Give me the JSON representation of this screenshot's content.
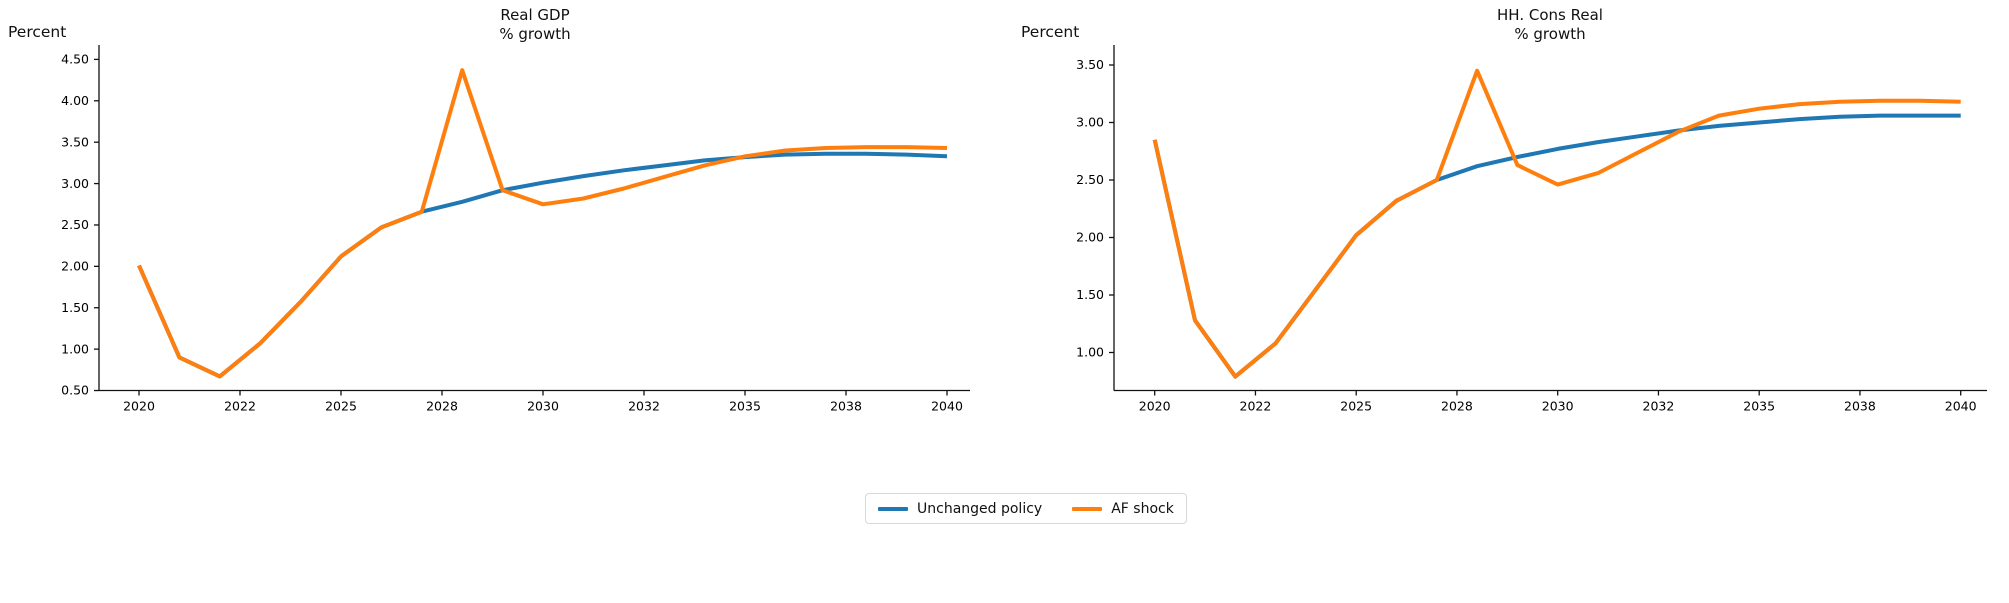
{
  "legend": {
    "items": [
      {
        "label": "Unchanged policy",
        "color": "#1f77b4",
        "swatch": "blue-line-swatch"
      },
      {
        "label": "AF shock",
        "color": "#ff7f0e",
        "swatch": "orange-line-swatch"
      }
    ],
    "position": "bottom-center"
  },
  "chart_data": [
    {
      "type": "line",
      "title": "Real GDP",
      "subtitle": "% growth",
      "ylabel": "Percent",
      "xlabel": "",
      "grid": false,
      "x": [
        2020,
        2021,
        2022,
        2023,
        2024,
        2025,
        2026,
        2027,
        2028,
        2029,
        2030,
        2031,
        2032,
        2033,
        2034,
        2035,
        2036,
        2037,
        2038,
        2039,
        2040
      ],
      "series": [
        {
          "name": "Unchanged policy",
          "color": "#1f77b4",
          "values": [
            2.01,
            0.9,
            0.67,
            1.07,
            1.57,
            2.12,
            2.47,
            2.66,
            2.78,
            2.92,
            3.01,
            3.09,
            3.16,
            3.22,
            3.28,
            3.32,
            3.35,
            3.36,
            3.36,
            3.35,
            3.33
          ]
        },
        {
          "name": "AF shock",
          "color": "#ff7f0e",
          "values": [
            2.01,
            0.9,
            0.67,
            1.07,
            1.57,
            2.12,
            2.47,
            2.66,
            4.37,
            2.92,
            2.75,
            2.82,
            2.94,
            3.08,
            3.22,
            3.33,
            3.4,
            3.43,
            3.44,
            3.44,
            3.43
          ]
        }
      ],
      "x_ticks": [
        {
          "label": "2020",
          "pos": 2020
        },
        {
          "label": "2022",
          "pos": 2022.5
        },
        {
          "label": "2025",
          "pos": 2025
        },
        {
          "label": "2028",
          "pos": 2027.5
        },
        {
          "label": "2030",
          "pos": 2030
        },
        {
          "label": "2032",
          "pos": 2032.5
        },
        {
          "label": "2035",
          "pos": 2035
        },
        {
          "label": "2038",
          "pos": 2037.5
        },
        {
          "label": "2040",
          "pos": 2040
        }
      ],
      "y_ticks": [
        "4.50",
        "4.00",
        "3.50",
        "3.00",
        "2.50",
        "2.00",
        "1.50",
        "1.00",
        "0.50"
      ],
      "y_tick_range": [
        0.5,
        4.5
      ],
      "x_range": [
        2020,
        2040
      ]
    },
    {
      "type": "line",
      "title": "HH. Cons Real",
      "subtitle": "% growth",
      "ylabel": "Percent",
      "xlabel": "",
      "grid": false,
      "x": [
        2020,
        2021,
        2022,
        2023,
        2024,
        2025,
        2026,
        2027,
        2028,
        2029,
        2030,
        2031,
        2032,
        2033,
        2034,
        2035,
        2036,
        2037,
        2038,
        2039,
        2040
      ],
      "series": [
        {
          "name": "Unchanged policy",
          "color": "#1f77b4",
          "values": [
            2.85,
            1.28,
            0.79,
            1.08,
            1.55,
            2.02,
            2.32,
            2.5,
            2.62,
            2.7,
            2.77,
            2.83,
            2.88,
            2.93,
            2.97,
            3.0,
            3.03,
            3.05,
            3.06,
            3.06,
            3.06
          ]
        },
        {
          "name": "AF shock",
          "color": "#ff7f0e",
          "values": [
            2.85,
            1.28,
            0.79,
            1.08,
            1.55,
            2.02,
            2.32,
            2.5,
            3.45,
            2.63,
            2.46,
            2.56,
            2.74,
            2.92,
            3.06,
            3.12,
            3.16,
            3.18,
            3.19,
            3.19,
            3.18
          ]
        }
      ],
      "x_ticks": [
        {
          "label": "2020",
          "pos": 2020
        },
        {
          "label": "2022",
          "pos": 2022.5
        },
        {
          "label": "2025",
          "pos": 2025
        },
        {
          "label": "2028",
          "pos": 2027.5
        },
        {
          "label": "2030",
          "pos": 2030
        },
        {
          "label": "2032",
          "pos": 2032.5
        },
        {
          "label": "2035",
          "pos": 2035
        },
        {
          "label": "2038",
          "pos": 2037.5
        },
        {
          "label": "2040",
          "pos": 2040
        }
      ],
      "y_ticks": [
        "3.50",
        "3.00",
        "2.50",
        "2.00",
        "1.50",
        "1.00"
      ],
      "y_tick_range": [
        1.0,
        3.5
      ],
      "x_range": [
        2020,
        2040
      ]
    }
  ]
}
